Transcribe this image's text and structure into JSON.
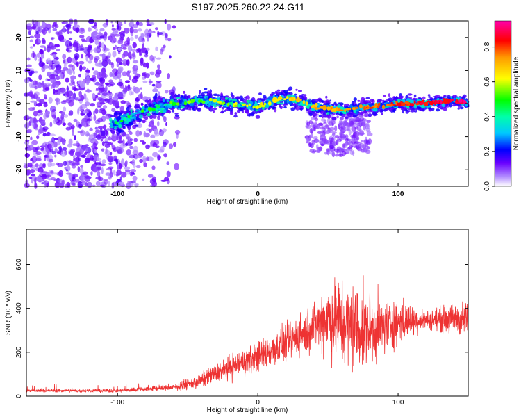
{
  "title": "S197.2025.260.22.24.G11",
  "colors": {
    "snr_line": "#ee3333",
    "axis": "#000000",
    "background": "#ffffff"
  },
  "chart_data": [
    {
      "type": "heatmap",
      "xlabel": "Height of straight line (km)",
      "ylabel": "Frequency (Hz)",
      "xlim": [
        -165,
        150
      ],
      "ylim": [
        -25,
        25
      ],
      "x_ticks": [
        -100,
        0,
        100
      ],
      "y_ticks": [
        -20,
        -10,
        0,
        10,
        20
      ],
      "colorbar": {
        "label": "Normalized spectral amplitude",
        "range": [
          0,
          0.95
        ],
        "ticks": [
          0.0,
          0.2,
          0.4,
          0.6,
          0.8
        ],
        "tick_labels": [
          "0.0",
          "0.2",
          "0.4",
          "0.6",
          "0.8"
        ]
      },
      "ridge": [
        {
          "x": -100,
          "y": -6
        },
        {
          "x": -80,
          "y": -2
        },
        {
          "x": -60,
          "y": 0
        },
        {
          "x": -40,
          "y": 1
        },
        {
          "x": -20,
          "y": 0
        },
        {
          "x": 0,
          "y": -1
        },
        {
          "x": 15,
          "y": 1.5
        },
        {
          "x": 30,
          "y": 1
        },
        {
          "x": 40,
          "y": -1
        },
        {
          "x": 60,
          "y": -2
        },
        {
          "x": 80,
          "y": -1
        },
        {
          "x": 100,
          "y": 0
        },
        {
          "x": 120,
          "y": 0
        },
        {
          "x": 140,
          "y": 1
        },
        {
          "x": 150,
          "y": 0
        }
      ]
    },
    {
      "type": "line",
      "xlabel": "Height of straight line (km)",
      "ylabel": "SNR (10 * v/v)",
      "xlim": [
        -165,
        150
      ],
      "ylim": [
        0,
        760
      ],
      "x_ticks": [
        -100,
        0,
        100
      ],
      "y_ticks": [
        0,
        200,
        400,
        600
      ],
      "envelope": [
        {
          "x": -165,
          "base": 25,
          "spread": 10
        },
        {
          "x": -100,
          "base": 25,
          "spread": 12
        },
        {
          "x": -60,
          "base": 40,
          "spread": 20
        },
        {
          "x": -45,
          "base": 60,
          "spread": 40
        },
        {
          "x": -20,
          "base": 130,
          "spread": 80
        },
        {
          "x": 0,
          "base": 180,
          "spread": 100
        },
        {
          "x": 20,
          "base": 240,
          "spread": 120
        },
        {
          "x": 40,
          "base": 320,
          "spread": 150
        },
        {
          "x": 50,
          "base": 360,
          "spread": 250
        },
        {
          "x": 60,
          "base": 330,
          "spread": 300
        },
        {
          "x": 75,
          "base": 300,
          "spread": 260
        },
        {
          "x": 90,
          "base": 320,
          "spread": 180
        },
        {
          "x": 100,
          "base": 340,
          "spread": 150
        },
        {
          "x": 120,
          "base": 350,
          "spread": 60
        },
        {
          "x": 150,
          "base": 350,
          "spread": 120
        }
      ]
    }
  ]
}
